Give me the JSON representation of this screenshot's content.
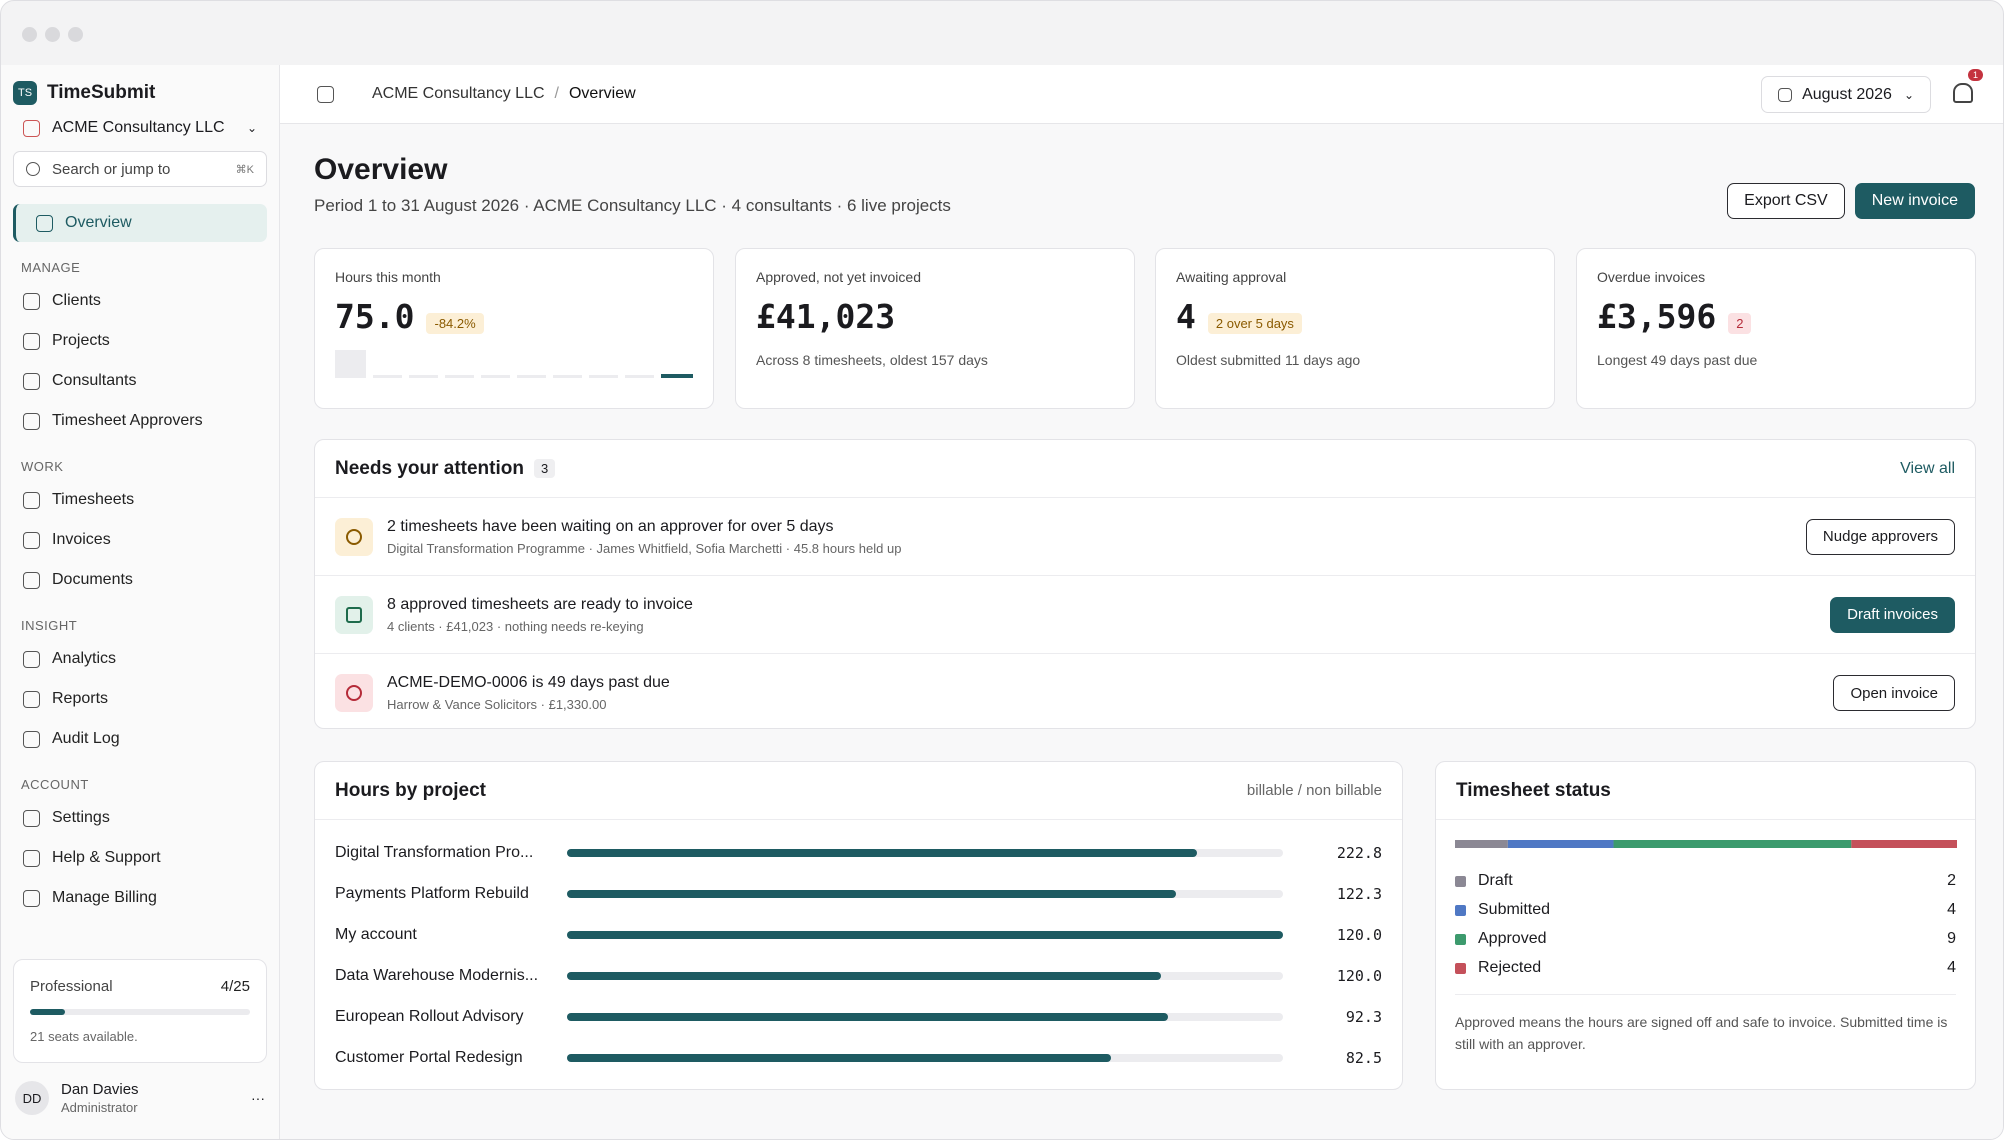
{
  "app": {
    "logo": "TS",
    "name": "TimeSubmit"
  },
  "org": "ACME Consultancy LLC",
  "search": {
    "placeholder": "Search or jump to",
    "shortcut": "⌘K"
  },
  "nav": {
    "top": "Overview",
    "sections": [
      {
        "title": "MANAGE",
        "items": [
          "Clients",
          "Projects",
          "Consultants",
          "Timesheet Approvers"
        ]
      },
      {
        "title": "WORK",
        "items": [
          "Timesheets",
          "Invoices",
          "Documents"
        ]
      },
      {
        "title": "INSIGHT",
        "items": [
          "Analytics",
          "Reports",
          "Audit Log"
        ]
      },
      {
        "title": "ACCOUNT",
        "items": [
          "Settings",
          "Help & Support",
          "Manage Billing"
        ]
      }
    ]
  },
  "plan": {
    "name": "Professional",
    "seats": "4/25",
    "note": "21 seats available."
  },
  "user": {
    "initials": "DD",
    "name": "Dan Davies",
    "role": "Administrator",
    "menu": "···"
  },
  "topbar": {
    "breadcrumb": [
      "ACME Consultancy LLC",
      "Overview"
    ],
    "separator": "/",
    "period": "August 2026",
    "notifications": "1"
  },
  "header": {
    "title": "Overview",
    "subtitle": "Period 1 to 31 August 2026 · ACME Consultancy LLC · 4 consultants · 6 live projects",
    "actions": [
      "Export CSV",
      "New invoice"
    ]
  },
  "kpis": [
    {
      "label": "Hours this month",
      "value": "75.0",
      "badge": "-84.2%",
      "tone": "warn"
    },
    {
      "label": "Approved, not yet invoiced",
      "value": "£41,023",
      "note": "Across 8 timesheets, oldest 157 days"
    },
    {
      "label": "Awaiting approval",
      "value": "4",
      "badge": "2 over 5 days",
      "tone": "warn",
      "note": "Oldest submitted 11 days ago"
    },
    {
      "label": "Overdue invoices",
      "value": "£3,596",
      "badge": "2",
      "tone": "bad",
      "note": "Longest 49 days past due"
    }
  ],
  "attention": {
    "title": "Needs your attention",
    "count": "3",
    "link": "View all",
    "items": [
      {
        "title": "2 timesheets have been waiting on an approver for over 5 days",
        "detail": "Digital Transformation Programme · James Whitfield, Sofia Marchetti · 45.8 hours held up",
        "action": "Nudge approvers",
        "tone": "warn"
      },
      {
        "title": "8 approved timesheets are ready to invoice",
        "detail": "4 clients · £41,023 · nothing needs re-keying",
        "action": "Draft invoices",
        "tone": "ok"
      },
      {
        "title": "ACME-DEMO-0006 is 49 days past due",
        "detail": "Harrow & Vance Solicitors · £1,330.00",
        "action": "Open invoice",
        "tone": "bad"
      }
    ]
  },
  "hours": {
    "title": "Hours by project",
    "legend": "billable / non billable",
    "rows": [
      {
        "project": "Digital Transformation Pro...",
        "hours": "222.8"
      },
      {
        "project": "Payments Platform Rebuild",
        "hours": "122.3"
      },
      {
        "project": "My account",
        "hours": "120.0"
      },
      {
        "project": "Data Warehouse Modernis...",
        "hours": "120.0"
      },
      {
        "project": "European Rollout Advisory",
        "hours": "92.3"
      },
      {
        "project": "Customer Portal Redesign",
        "hours": "82.5"
      }
    ]
  },
  "status": {
    "title": "Timesheet status",
    "items": [
      {
        "name": "Draft",
        "count": 2,
        "color": "#8b8894"
      },
      {
        "name": "Submitted",
        "count": 4,
        "color": "#4f78c4"
      },
      {
        "name": "Approved",
        "count": 9,
        "color": "#3c9a6d"
      },
      {
        "name": "Rejected",
        "count": 4,
        "color": "#c4505a"
      }
    ],
    "note": "Approved means the hours are signed off and safe to invoice. Submitted time is still with an approver."
  }
}
